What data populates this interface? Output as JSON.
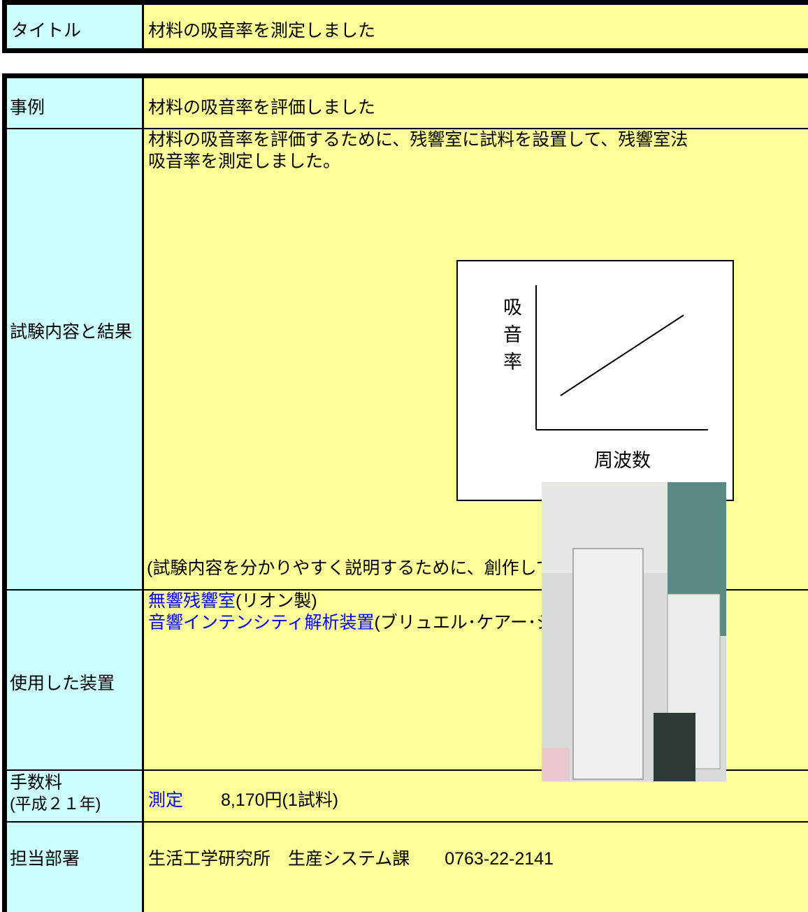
{
  "title_table": {
    "label": "タイトル",
    "value": "材料の吸音率を測定しました"
  },
  "case": {
    "label": "事例",
    "value": "材料の吸音率を評価しました"
  },
  "test": {
    "label": "試験内容と結果",
    "description": [
      "材料の吸音率を評価するために、残響室に試料を設置して、残響室法",
      "吸音率を測定しました。"
    ],
    "diagram": {
      "y_label": "吸音率",
      "x_label": "周波数"
    },
    "note": "(試験内容を分かりやすく説明するために、創作しています)"
  },
  "equipment": {
    "label": "使用した装置",
    "items": [
      {
        "name": "無響残響室",
        "maker": "(リオン製)"
      },
      {
        "name": "音響インテンシティ解析装置",
        "maker": "(ブリュエル･ケアー･ジャパン　他)"
      }
    ]
  },
  "fee": {
    "label": "手数料",
    "label_note": "(平成２１年)",
    "item": "測定",
    "price": "8,170円(1試料)"
  },
  "department": {
    "label": "担当部署",
    "value": "生活工学研究所　生産システム課　　0763-22-2141"
  }
}
